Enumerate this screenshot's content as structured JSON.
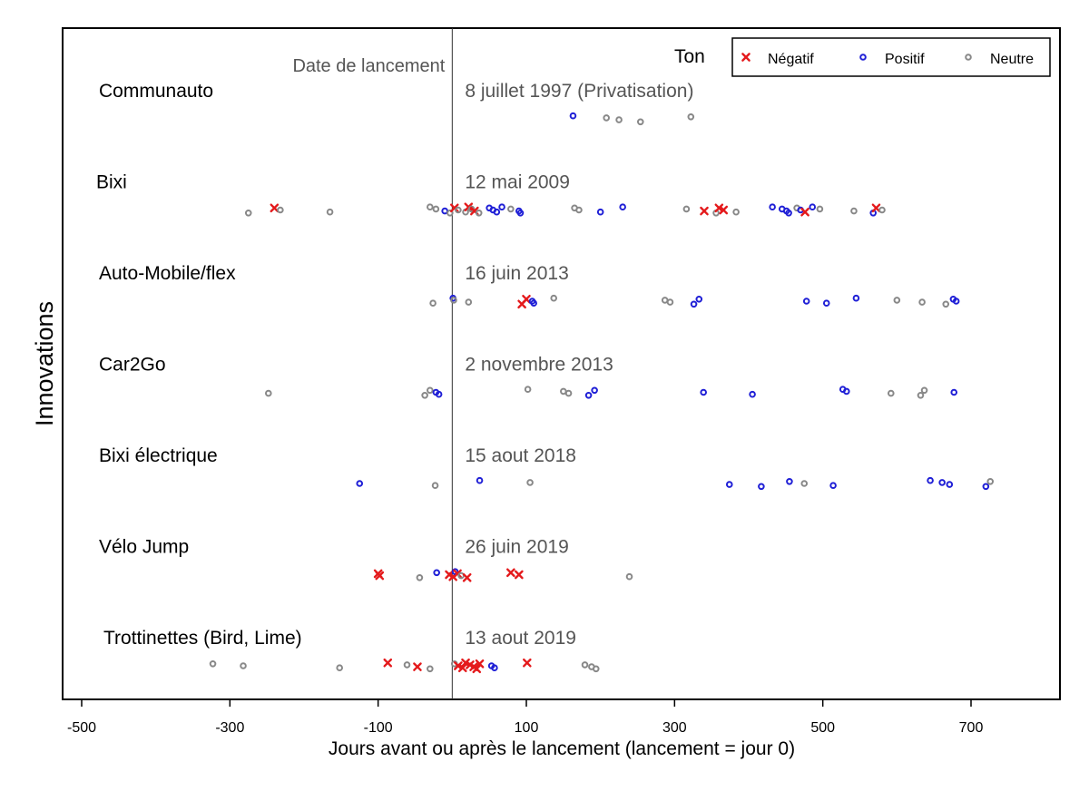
{
  "chart_data": {
    "type": "scatter",
    "xlabel": "Jours avant ou après le lancement (lancement = jour 0)",
    "ylabel": "Innovations",
    "xlim": [
      -525,
      825
    ],
    "x_ticks": [
      -500,
      -300,
      -100,
      100,
      300,
      500,
      700
    ],
    "x_tick_labels": [
      "-500",
      "-300",
      "-100",
      "100",
      "300",
      "500",
      "700"
    ],
    "reference_line": {
      "x": 0,
      "label": "Date de lancement"
    },
    "legend": {
      "title": "Ton",
      "placement": "top-right",
      "entries": [
        {
          "key": "negatif",
          "label": "Négatif",
          "marker": "x",
          "color": "#e41a1c"
        },
        {
          "key": "positif",
          "label": "Positif",
          "marker": "circle",
          "color": "#1f1fd6"
        },
        {
          "key": "neutre",
          "label": "Neutre",
          "marker": "circle",
          "color": "#888888"
        }
      ]
    },
    "grid": false,
    "innovations": [
      {
        "name": "Communauto",
        "launch": "8 juillet 1997 (Privatisation)",
        "points": [
          {
            "x": 163,
            "tone": "positif"
          },
          {
            "x": 208,
            "tone": "neutre"
          },
          {
            "x": 225,
            "tone": "neutre"
          },
          {
            "x": 254,
            "tone": "neutre"
          },
          {
            "x": 322,
            "tone": "neutre"
          }
        ]
      },
      {
        "name": "Bixi",
        "launch": "12 mai 2009",
        "points": [
          {
            "x": -275,
            "tone": "neutre"
          },
          {
            "x": -240,
            "tone": "negatif"
          },
          {
            "x": -232,
            "tone": "neutre"
          },
          {
            "x": -165,
            "tone": "neutre"
          },
          {
            "x": -30,
            "tone": "neutre"
          },
          {
            "x": -22,
            "tone": "neutre"
          },
          {
            "x": -10,
            "tone": "positif"
          },
          {
            "x": -3,
            "tone": "neutre"
          },
          {
            "x": 3,
            "tone": "negatif"
          },
          {
            "x": 8,
            "tone": "neutre"
          },
          {
            "x": 18,
            "tone": "neutre"
          },
          {
            "x": 22,
            "tone": "negatif"
          },
          {
            "x": 26,
            "tone": "neutre"
          },
          {
            "x": 30,
            "tone": "negatif"
          },
          {
            "x": 36,
            "tone": "neutre"
          },
          {
            "x": 50,
            "tone": "positif"
          },
          {
            "x": 55,
            "tone": "positif"
          },
          {
            "x": 60,
            "tone": "positif"
          },
          {
            "x": 67,
            "tone": "positif"
          },
          {
            "x": 79,
            "tone": "neutre"
          },
          {
            "x": 90,
            "tone": "positif"
          },
          {
            "x": 92,
            "tone": "positif"
          },
          {
            "x": 165,
            "tone": "neutre"
          },
          {
            "x": 171,
            "tone": "neutre"
          },
          {
            "x": 200,
            "tone": "positif"
          },
          {
            "x": 230,
            "tone": "positif"
          },
          {
            "x": 316,
            "tone": "neutre"
          },
          {
            "x": 340,
            "tone": "negatif"
          },
          {
            "x": 356,
            "tone": "neutre"
          },
          {
            "x": 360,
            "tone": "negatif"
          },
          {
            "x": 366,
            "tone": "negatif"
          },
          {
            "x": 383,
            "tone": "neutre"
          },
          {
            "x": 432,
            "tone": "positif"
          },
          {
            "x": 445,
            "tone": "positif"
          },
          {
            "x": 451,
            "tone": "positif"
          },
          {
            "x": 454,
            "tone": "positif"
          },
          {
            "x": 465,
            "tone": "neutre"
          },
          {
            "x": 470,
            "tone": "positif"
          },
          {
            "x": 476,
            "tone": "negatif"
          },
          {
            "x": 486,
            "tone": "positif"
          },
          {
            "x": 496,
            "tone": "neutre"
          },
          {
            "x": 542,
            "tone": "neutre"
          },
          {
            "x": 568,
            "tone": "positif"
          },
          {
            "x": 572,
            "tone": "negatif"
          },
          {
            "x": 580,
            "tone": "neutre"
          }
        ]
      },
      {
        "name": "Auto-Mobile/flex",
        "launch": "16 juin 2013",
        "points": [
          {
            "x": -26,
            "tone": "neutre"
          },
          {
            "x": 1,
            "tone": "positif"
          },
          {
            "x": 2,
            "tone": "neutre"
          },
          {
            "x": 22,
            "tone": "neutre"
          },
          {
            "x": 94,
            "tone": "negatif"
          },
          {
            "x": 100,
            "tone": "negatif"
          },
          {
            "x": 108,
            "tone": "positif"
          },
          {
            "x": 110,
            "tone": "positif"
          },
          {
            "x": 137,
            "tone": "neutre"
          },
          {
            "x": 287,
            "tone": "neutre"
          },
          {
            "x": 294,
            "tone": "neutre"
          },
          {
            "x": 326,
            "tone": "positif"
          },
          {
            "x": 333,
            "tone": "positif"
          },
          {
            "x": 478,
            "tone": "positif"
          },
          {
            "x": 505,
            "tone": "positif"
          },
          {
            "x": 545,
            "tone": "positif"
          },
          {
            "x": 600,
            "tone": "neutre"
          },
          {
            "x": 634,
            "tone": "neutre"
          },
          {
            "x": 666,
            "tone": "neutre"
          },
          {
            "x": 676,
            "tone": "positif"
          },
          {
            "x": 680,
            "tone": "positif"
          }
        ]
      },
      {
        "name": "Car2Go",
        "launch": "2 novembre 2013",
        "points": [
          {
            "x": -248,
            "tone": "neutre"
          },
          {
            "x": -37,
            "tone": "neutre"
          },
          {
            "x": -30,
            "tone": "neutre"
          },
          {
            "x": -22,
            "tone": "positif"
          },
          {
            "x": -18,
            "tone": "positif"
          },
          {
            "x": 102,
            "tone": "neutre"
          },
          {
            "x": 150,
            "tone": "neutre"
          },
          {
            "x": 157,
            "tone": "neutre"
          },
          {
            "x": 184,
            "tone": "positif"
          },
          {
            "x": 192,
            "tone": "positif"
          },
          {
            "x": 339,
            "tone": "positif"
          },
          {
            "x": 405,
            "tone": "positif"
          },
          {
            "x": 527,
            "tone": "positif"
          },
          {
            "x": 532,
            "tone": "positif"
          },
          {
            "x": 592,
            "tone": "neutre"
          },
          {
            "x": 632,
            "tone": "neutre"
          },
          {
            "x": 637,
            "tone": "neutre"
          },
          {
            "x": 677,
            "tone": "positif"
          }
        ]
      },
      {
        "name": "Bixi électrique",
        "launch": "15 aout 2018",
        "points": [
          {
            "x": -125,
            "tone": "positif"
          },
          {
            "x": -23,
            "tone": "neutre"
          },
          {
            "x": 37,
            "tone": "positif"
          },
          {
            "x": 105,
            "tone": "neutre"
          },
          {
            "x": 374,
            "tone": "positif"
          },
          {
            "x": 417,
            "tone": "positif"
          },
          {
            "x": 455,
            "tone": "positif"
          },
          {
            "x": 475,
            "tone": "neutre"
          },
          {
            "x": 514,
            "tone": "positif"
          },
          {
            "x": 645,
            "tone": "positif"
          },
          {
            "x": 661,
            "tone": "positif"
          },
          {
            "x": 671,
            "tone": "positif"
          },
          {
            "x": 720,
            "tone": "positif"
          },
          {
            "x": 726,
            "tone": "neutre"
          }
        ]
      },
      {
        "name": "Vélo Jump",
        "launch": "26 juin 2019",
        "points": [
          {
            "x": -100,
            "tone": "negatif"
          },
          {
            "x": -98,
            "tone": "negatif"
          },
          {
            "x": -44,
            "tone": "neutre"
          },
          {
            "x": -21,
            "tone": "positif"
          },
          {
            "x": -4,
            "tone": "negatif"
          },
          {
            "x": 1,
            "tone": "negatif"
          },
          {
            "x": 4,
            "tone": "positif"
          },
          {
            "x": 7,
            "tone": "negatif"
          },
          {
            "x": 12,
            "tone": "neutre"
          },
          {
            "x": 20,
            "tone": "negatif"
          },
          {
            "x": 79,
            "tone": "negatif"
          },
          {
            "x": 90,
            "tone": "negatif"
          },
          {
            "x": 239,
            "tone": "neutre"
          }
        ]
      },
      {
        "name": "Trottinettes (Bird, Lime)",
        "launch": "13 aout 2019",
        "points": [
          {
            "x": -323,
            "tone": "neutre"
          },
          {
            "x": -282,
            "tone": "neutre"
          },
          {
            "x": -152,
            "tone": "neutre"
          },
          {
            "x": -87,
            "tone": "negatif"
          },
          {
            "x": -61,
            "tone": "neutre"
          },
          {
            "x": -47,
            "tone": "negatif"
          },
          {
            "x": -30,
            "tone": "neutre"
          },
          {
            "x": 3,
            "tone": "neutre"
          },
          {
            "x": 8,
            "tone": "negatif"
          },
          {
            "x": 14,
            "tone": "negatif"
          },
          {
            "x": 18,
            "tone": "negatif"
          },
          {
            "x": 24,
            "tone": "negatif"
          },
          {
            "x": 29,
            "tone": "negatif"
          },
          {
            "x": 33,
            "tone": "negatif"
          },
          {
            "x": 37,
            "tone": "negatif"
          },
          {
            "x": 53,
            "tone": "positif"
          },
          {
            "x": 57,
            "tone": "positif"
          },
          {
            "x": 101,
            "tone": "negatif"
          },
          {
            "x": 179,
            "tone": "neutre"
          },
          {
            "x": 188,
            "tone": "neutre"
          },
          {
            "x": 194,
            "tone": "neutre"
          }
        ]
      }
    ]
  }
}
